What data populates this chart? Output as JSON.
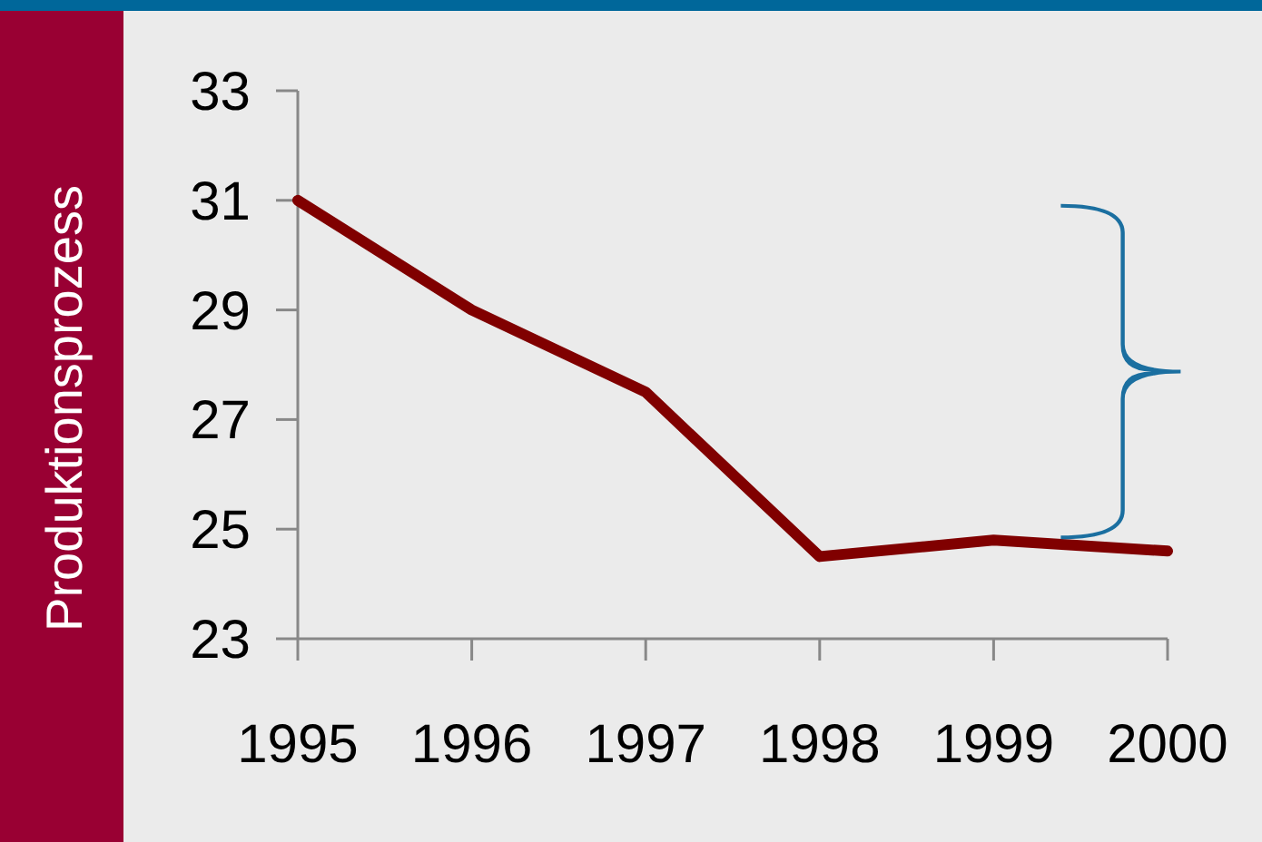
{
  "chart_data": {
    "type": "line",
    "ylabel": "Produktionsprozess",
    "x": [
      1995,
      1996,
      1997,
      1998,
      1999,
      2000
    ],
    "series": [
      {
        "color": "#800000",
        "values": [
          31,
          29,
          27.5,
          24.5,
          24.8,
          24.6
        ]
      }
    ],
    "xlim": [
      1995,
      2000
    ],
    "xticks": [
      1995,
      1996,
      1997,
      1998,
      1999,
      2000
    ],
    "ylim": [
      23,
      33
    ],
    "yticks": [
      23,
      25,
      27,
      29,
      31,
      33
    ]
  }
}
